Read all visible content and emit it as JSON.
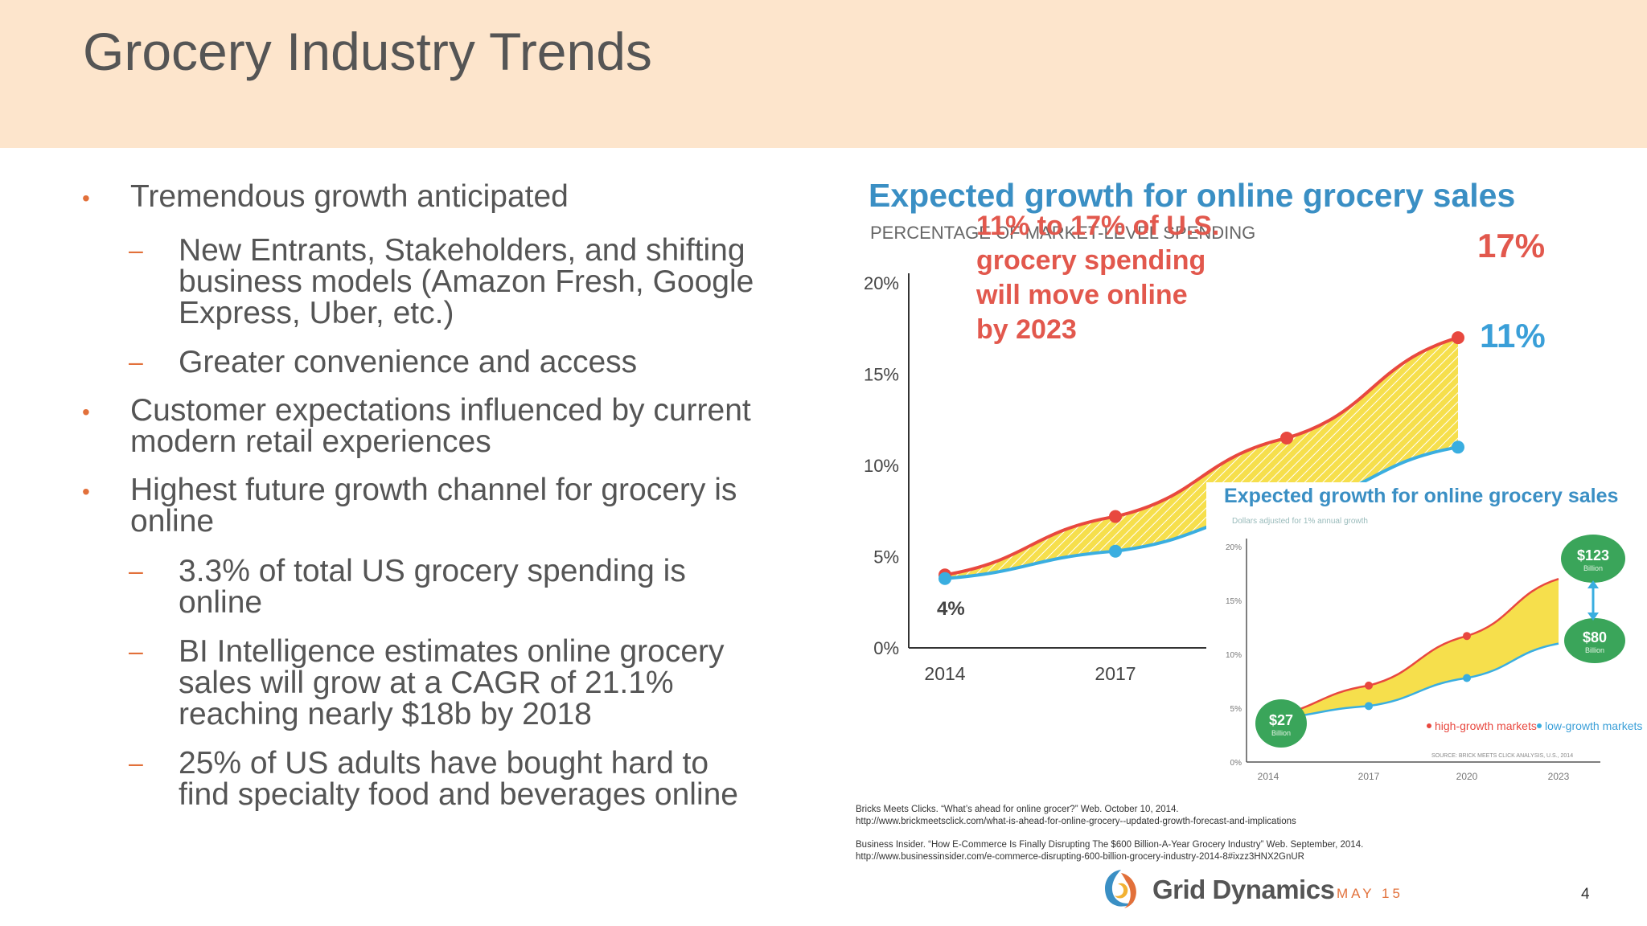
{
  "slide": {
    "title": "Grocery Industry Trends",
    "bullets": [
      {
        "level": 1,
        "lines": [
          "Tremendous growth anticipated"
        ]
      },
      {
        "level": 2,
        "lines": [
          "New Entrants, Stakeholders, and shifting",
          "business models (Amazon Fresh, Google",
          "Express, Uber, etc.)"
        ]
      },
      {
        "level": 2,
        "lines": [
          "Greater convenience and access"
        ]
      },
      {
        "level": 1,
        "lines": [
          "Customer expectations influenced by current",
          "modern retail experiences"
        ]
      },
      {
        "level": 1,
        "lines": [
          "Highest future growth channel for grocery is",
          "online"
        ]
      },
      {
        "level": 2,
        "lines": [
          "3.3% of total US grocery spending is",
          "online"
        ]
      },
      {
        "level": 2,
        "lines": [
          "BI Intelligence estimates online grocery",
          "sales will grow at a CAGR of 21.1%",
          "reaching nearly $18b by 2018"
        ]
      },
      {
        "level": 2,
        "lines": [
          "25% of US adults have bought hard to",
          "find specialty food and beverages online"
        ]
      }
    ]
  },
  "chart_data": [
    {
      "type": "area",
      "title": "Expected growth for online grocery sales",
      "subtitle": "PERCENTAGE OF MARKET-LEVEL SPENDING",
      "annotation": [
        "11% to 17% of U.S.",
        "grocery spending",
        "will move online",
        "by 2023"
      ],
      "x": [
        "2014",
        "2017",
        "2020",
        "2023"
      ],
      "ylim": [
        0,
        20
      ],
      "yticks": [
        "0%",
        "5%",
        "10%",
        "15%",
        "20%"
      ],
      "xticks": [
        "2014",
        "2017"
      ],
      "series": [
        {
          "values": [
            4,
            7.2,
            11.5,
            17
          ],
          "color": "#e8483f"
        },
        {
          "values": [
            3.8,
            5.3,
            7.7,
            11
          ],
          "color": "#3aaee0"
        }
      ],
      "fill_color": "#f6df4c",
      "data_labels": {
        "start": "4%",
        "high_end": "17%",
        "low_end": "11%"
      }
    },
    {
      "type": "area",
      "title": "Expected growth for online grocery sales",
      "subtitle": "Dollars adjusted for 1% annual growth",
      "x": [
        "2014",
        "2017",
        "2020",
        "2023"
      ],
      "ylim": [
        0,
        20
      ],
      "yticks": [
        "0%",
        "5%",
        "10%",
        "15%",
        "20%"
      ],
      "series": [
        {
          "name": "high-growth markets",
          "values": [
            4.2,
            7.1,
            11.7,
            17
          ],
          "color": "#e8483f"
        },
        {
          "name": "low-growth markets",
          "values": [
            4.0,
            5.2,
            7.8,
            11
          ],
          "color": "#3aaee0"
        }
      ],
      "fill_color": "#f6df4c",
      "badges": [
        {
          "amount": "$27",
          "unit": "Billion"
        },
        {
          "amount": "$123",
          "unit": "Billion"
        },
        {
          "amount": "$80",
          "unit": "Billion"
        }
      ],
      "source": "SOURCE: BRICK MEETS CLICK ANALYSIS, U.S., 2014",
      "badge_color": "#3aa55a"
    }
  ],
  "footnotes": [
    [
      "Bricks Meets Clicks. “What’s ahead for online grocer?” Web. October 10, 2014.",
      "http://www.brickmeetsclick.com/what-is-ahead-for-online-grocery--updated-growth-forecast-and-implications"
    ],
    [
      "Business Insider. “How E-Commerce Is Finally Disrupting The $600 Billion-A-Year Grocery Industry” Web. September, 2014.",
      "http://www.businessinsider.com/e-commerce-disrupting-600-billion-grocery-industry-2014-8#ixzz3HNX2GnUR"
    ]
  ],
  "footer": {
    "brand": "Grid Dynamics",
    "date": "MAY 15",
    "page": "4"
  },
  "colors": {
    "accent": "#e2703a",
    "header_bg": "#fde5cc",
    "chart_title": "#3a8fc4",
    "annotation": "#e2584d"
  }
}
